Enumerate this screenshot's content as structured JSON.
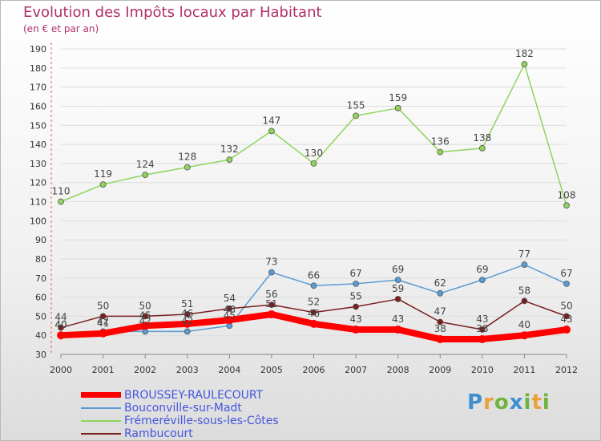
{
  "title": "Evolution des Impôts locaux par Habitant",
  "subtitle": "(en € et par an)",
  "brand": {
    "text": "Proxiti",
    "letters": [
      "P",
      "r",
      "o",
      "x",
      "i",
      "t",
      "i"
    ]
  },
  "chart_data": {
    "type": "line",
    "categories": [
      "2000",
      "2001",
      "2002",
      "2003",
      "2004",
      "2005",
      "2006",
      "2007",
      "2008",
      "2009",
      "2010",
      "2011",
      "2012"
    ],
    "ylim": [
      30,
      190
    ],
    "yticks": [
      30,
      40,
      50,
      60,
      70,
      80,
      90,
      100,
      110,
      120,
      130,
      140,
      150,
      160,
      170,
      180,
      190
    ],
    "series": [
      {
        "name": "BROUSSEY-RAULECOURT",
        "color": "#ff0000",
        "thick": true,
        "labels": true,
        "values": [
          40,
          41,
          45,
          46,
          48,
          51,
          46,
          43,
          43,
          38,
          38,
          40,
          43
        ]
      },
      {
        "name": "Bouconville-sur-Madt",
        "color": "#5b9bd5",
        "thick": false,
        "labels": true,
        "values": [
          40,
          42,
          42,
          42,
          45,
          73,
          66,
          67,
          69,
          62,
          69,
          77,
          67
        ]
      },
      {
        "name": "Frémeréville-sous-les-Côtes",
        "color": "#8fd45c",
        "thick": false,
        "labels": true,
        "values": [
          110,
          119,
          124,
          128,
          132,
          147,
          130,
          155,
          159,
          136,
          138,
          182,
          108
        ]
      },
      {
        "name": "Rambucourt",
        "color": "#7b1e1e",
        "thick": false,
        "labels": true,
        "values": [
          44,
          50,
          50,
          51,
          54,
          56,
          52,
          55,
          59,
          47,
          43,
          58,
          50
        ]
      }
    ]
  }
}
